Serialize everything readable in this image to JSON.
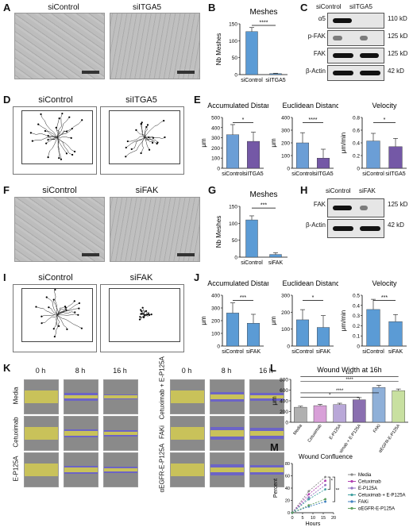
{
  "panels": {
    "A": {
      "letter": "A",
      "labels": [
        "siControl",
        "siITGA5"
      ]
    },
    "B": {
      "letter": "B",
      "title": "Meshes",
      "ylabel": "Nb Meshes",
      "sig": "****"
    },
    "C": {
      "letter": "C",
      "lanes": [
        "siControl",
        "siITGA5"
      ],
      "rows": [
        "α5",
        "p-FAK",
        "FAK",
        "β-Actin"
      ],
      "sizes": [
        "110 kD",
        "125 kD",
        "125 kD",
        "42 kD"
      ]
    },
    "D": {
      "letter": "D",
      "labels": [
        "siControl",
        "siITGA5"
      ]
    },
    "E": {
      "letter": "E"
    },
    "F": {
      "letter": "F",
      "labels": [
        "siControl",
        "siFAK"
      ]
    },
    "G": {
      "letter": "G",
      "title": "Meshes",
      "ylabel": "Nb Meshes",
      "sig": "***"
    },
    "H": {
      "letter": "H",
      "lanes": [
        "siControl",
        "siFAK"
      ],
      "rows": [
        "FAK",
        "β-Actin"
      ],
      "sizes": [
        "125 kD",
        "42 kD"
      ]
    },
    "I": {
      "letter": "I",
      "labels": [
        "siControl",
        "siFAK"
      ]
    },
    "J": {
      "letter": "J"
    },
    "K": {
      "letter": "K",
      "times": [
        "0 h",
        "8 h",
        "16 h"
      ],
      "left_rows": [
        "Media",
        "Cetuximab",
        "E-P125A"
      ],
      "right_rows": [
        "Cetuximab + E-P125A",
        "FAKi",
        "αEGFR-E-P125A"
      ]
    },
    "L": {
      "letter": "L"
    },
    "M": {
      "letter": "M"
    }
  },
  "chart_data": [
    {
      "id": "B",
      "type": "bar",
      "title": "Meshes",
      "ylabel": "Nb Meshes",
      "categories": [
        "siControl",
        "siITGA5"
      ],
      "values": [
        127,
        3
      ],
      "errors": [
        12,
        1
      ],
      "ylim": [
        0,
        150
      ],
      "yticks": [
        0,
        50,
        100,
        150
      ],
      "colors": [
        "#5b9bd5",
        "#5b9bd5"
      ],
      "significance": "****"
    },
    {
      "id": "E1",
      "type": "bar",
      "title": "Accumulated Distance",
      "ylabel": "μm",
      "categories": [
        "siControl",
        "siITGA5"
      ],
      "values": [
        330,
        265
      ],
      "errors": [
        100,
        90
      ],
      "ylim": [
        0,
        500
      ],
      "yticks": [
        0,
        100,
        200,
        300,
        400,
        500
      ],
      "colors": [
        "#6b9ed6",
        "#7458a6"
      ],
      "significance": "*"
    },
    {
      "id": "E2",
      "type": "bar",
      "title": "Euclidean Distance",
      "ylabel": "μm",
      "categories": [
        "siControl",
        "siITGA5"
      ],
      "values": [
        200,
        80
      ],
      "errors": [
        80,
        70
      ],
      "ylim": [
        0,
        400
      ],
      "yticks": [
        0,
        100,
        200,
        300,
        400
      ],
      "colors": [
        "#6b9ed6",
        "#7458a6"
      ],
      "significance": "****"
    },
    {
      "id": "E3",
      "type": "bar",
      "title": "Velocity",
      "ylabel": "μm/min",
      "categories": [
        "siControl",
        "siITGA5"
      ],
      "values": [
        0.43,
        0.34
      ],
      "errors": [
        0.12,
        0.13
      ],
      "ylim": [
        0,
        0.8
      ],
      "yticks": [
        0,
        0.2,
        0.4,
        0.6,
        0.8
      ],
      "colors": [
        "#6b9ed6",
        "#7458a6"
      ],
      "significance": "*"
    },
    {
      "id": "G",
      "type": "bar",
      "title": "Meshes",
      "ylabel": "Nb Meshes",
      "categories": [
        "siControl",
        "siFAK"
      ],
      "values": [
        110,
        8
      ],
      "errors": [
        12,
        5
      ],
      "ylim": [
        0,
        150
      ],
      "yticks": [
        0,
        50,
        100,
        150
      ],
      "colors": [
        "#5b9bd5",
        "#5b9bd5"
      ],
      "significance": "***"
    },
    {
      "id": "J1",
      "type": "bar",
      "title": "Accumulated Distance",
      "ylabel": "μm",
      "categories": [
        "siControl",
        "siFAK"
      ],
      "values": [
        260,
        180
      ],
      "errors": [
        80,
        70
      ],
      "ylim": [
        0,
        400
      ],
      "yticks": [
        0,
        100,
        200,
        300,
        400
      ],
      "colors": [
        "#5b9bd5",
        "#5b9bd5"
      ],
      "significance": "***"
    },
    {
      "id": "J2",
      "type": "bar",
      "title": "Euclidean Distance",
      "ylabel": "μm",
      "categories": [
        "siControl",
        "siFAK"
      ],
      "values": [
        155,
        110
      ],
      "errors": [
        60,
        70
      ],
      "ylim": [
        0,
        300
      ],
      "yticks": [
        0,
        100,
        200,
        300
      ],
      "colors": [
        "#5b9bd5",
        "#5b9bd5"
      ],
      "significance": "*"
    },
    {
      "id": "J3",
      "type": "bar",
      "title": "Velocity",
      "ylabel": "μm/min",
      "categories": [
        "siControl",
        "siFAK"
      ],
      "values": [
        0.36,
        0.24
      ],
      "errors": [
        0.1,
        0.07
      ],
      "ylim": [
        0,
        0.5
      ],
      "yticks": [
        0,
        0.1,
        0.2,
        0.3,
        0.4,
        0.5
      ],
      "colors": [
        "#5b9bd5",
        "#5b9bd5"
      ],
      "significance": "***"
    },
    {
      "id": "L",
      "type": "bar",
      "title": "Wound Width at 16h",
      "ylabel": "μm",
      "categories": [
        "Media",
        "Cetuximab",
        "E-P125A",
        "Cetuximab + E-P125A",
        "FAKi",
        "αEGFR-E-P125A"
      ],
      "values": [
        280,
        310,
        330,
        420,
        650,
        590
      ],
      "errors": [
        20,
        25,
        25,
        40,
        40,
        30
      ],
      "ylim": [
        0,
        800
      ],
      "yticks": [
        0,
        200,
        400,
        600,
        800
      ],
      "colors": [
        "#b0b0b0",
        "#d8a0d8",
        "#b9a8d8",
        "#8a6fb0",
        "#8fb0d8",
        "#c8e0a0"
      ],
      "significance": [
        "*",
        "****",
        "****",
        "****"
      ]
    },
    {
      "id": "M",
      "type": "line",
      "title": "Wound Confluence",
      "xlabel": "Hours",
      "ylabel": "Percent",
      "x": [
        0,
        8,
        16
      ],
      "xlim": [
        0,
        20
      ],
      "xticks": [
        0,
        5,
        10,
        15,
        20
      ],
      "ylim": [
        0,
        80
      ],
      "yticks": [
        0,
        20,
        40,
        60,
        80
      ],
      "series": [
        {
          "name": "Media",
          "values": [
            0,
            35,
            58
          ],
          "color": "#888888"
        },
        {
          "name": "Cetuximab",
          "values": [
            0,
            30,
            52
          ],
          "color": "#b040b0"
        },
        {
          "name": "E-P125A",
          "values": [
            0,
            25,
            45
          ],
          "color": "#9070c0"
        },
        {
          "name": "Cetuximab + E-P125A",
          "values": [
            0,
            22,
            38
          ],
          "color": "#40a0a0"
        },
        {
          "name": "FAKi",
          "values": [
            0,
            10,
            18
          ],
          "color": "#4080c0"
        },
        {
          "name": "αEGFR-E-P125A",
          "values": [
            0,
            12,
            22
          ],
          "color": "#60a060"
        }
      ],
      "significance": [
        "*",
        "**"
      ]
    }
  ]
}
